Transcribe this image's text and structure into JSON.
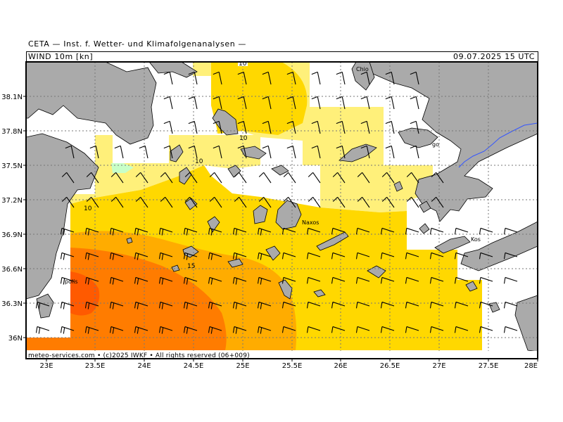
{
  "header": {
    "institution": "CETA — Inst. f. Wetter- und Klimafolgenanalysen —",
    "parameter": "WIND 10m [kn]",
    "valid_time": "09.07.2025 15 UTC"
  },
  "footer": {
    "credit": "meteo-services.com • (c)2025 IWKF • All rights reserved (06+009)"
  },
  "axes": {
    "lon_ticks": [
      "23E",
      "23.5E",
      "24E",
      "24.5E",
      "25E",
      "25.5E",
      "26E",
      "26.5E",
      "27E",
      "27.5E",
      "28E"
    ],
    "lat_ticks": [
      "38.1N",
      "37.8N",
      "37.5N",
      "37.2N",
      "36.9N",
      "36.6N",
      "36.3N",
      "36N"
    ]
  },
  "places": {
    "chios": "Chio",
    "naxos": "Naxos",
    "kos": "Kos",
    "samos": "go",
    "monemvasia": "polis"
  },
  "contour_labels": {
    "c10_a": "10",
    "c10_b": "10",
    "c10_c": "10",
    "c10_d": "10",
    "c15": "15"
  },
  "colors": {
    "land": "#aaaaaa",
    "sea": "#ffffff",
    "wind_0_5": "#c8ffc8",
    "wind_5_10": "#fff07a",
    "wind_10_15": "#ffd800",
    "wind_15_20": "#ffac00",
    "wind_20_25": "#ff7c00",
    "wind_25_30": "#ff5a00",
    "grid": "#777777",
    "border_line": "#3355ff"
  }
}
